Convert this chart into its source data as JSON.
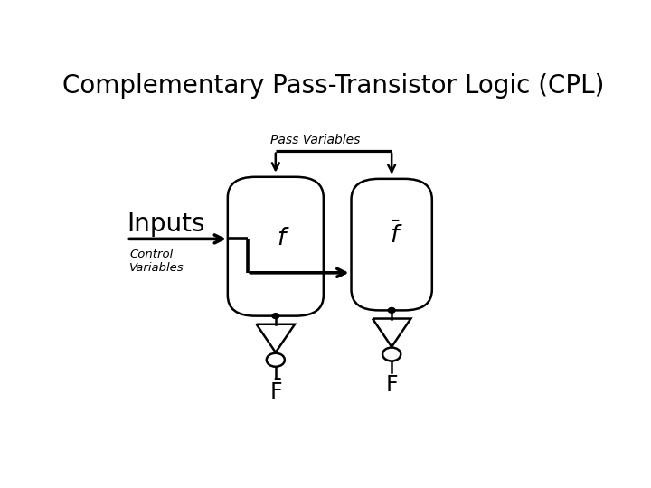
{
  "title": "Complementary Pass-Transistor Logic (CPL)",
  "title_fontsize": 20,
  "bg_color": "#ffffff",
  "line_color": "#000000",
  "b1x": 0.385,
  "b1y": 0.5,
  "b2x": 0.615,
  "b2y": 0.505,
  "bw1": 0.095,
  "bh1": 0.185,
  "bw2": 0.08,
  "bh2": 0.175,
  "pass_vars_label": "Pass Variables",
  "inputs_label": "Inputs",
  "control_vars_label": "Control\nVariables"
}
